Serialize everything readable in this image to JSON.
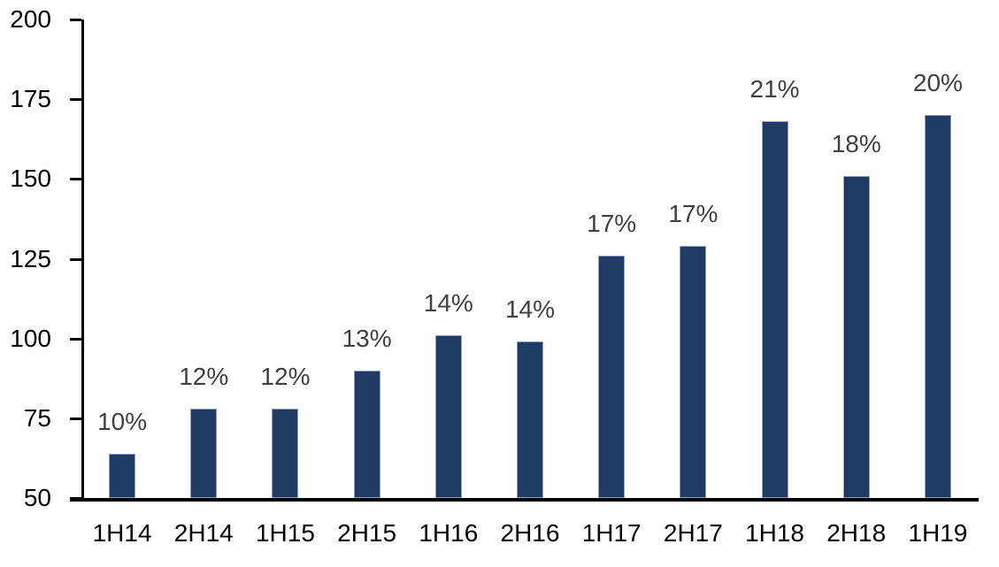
{
  "chart_data": {
    "type": "bar",
    "title": "",
    "xlabel": "",
    "ylabel": "",
    "categories": [
      "1H14",
      "2H14",
      "1H15",
      "2H15",
      "1H16",
      "2H16",
      "1H17",
      "2H17",
      "1H18",
      "2H18",
      "1H19"
    ],
    "values": [
      64,
      78,
      78,
      90,
      101,
      99,
      126,
      129,
      168,
      151,
      170
    ],
    "bar_labels": [
      "10%",
      "12%",
      "12%",
      "13%",
      "14%",
      "14%",
      "17%",
      "17%",
      "21%",
      "18%",
      "20%"
    ],
    "ylim": [
      50,
      200
    ],
    "ytick_step": 25,
    "ytick_labels": [
      "200",
      "175",
      "150",
      "125",
      "100",
      "75",
      "50"
    ],
    "grid": false,
    "legend": "none",
    "colors": {
      "bar_fill": "#1f3a63",
      "bar_border": "#8e9fba",
      "data_label": "#404040",
      "axis": "#000000",
      "tick_label": "#000000",
      "background": "#ffffff"
    }
  }
}
